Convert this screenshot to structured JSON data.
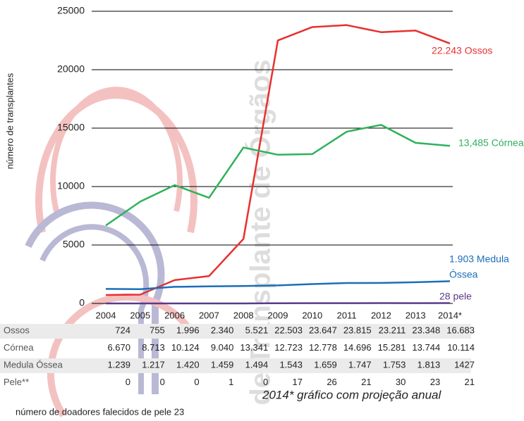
{
  "chart_data": {
    "type": "line",
    "y_label": "número de transplantes",
    "watermark": "de Transplante de Órgãos",
    "categories": [
      "2004",
      "2005",
      "2006",
      "2007",
      "2008",
      "2009",
      "2010",
      "2011",
      "2012",
      "2013",
      "2014*"
    ],
    "ylim": [
      0,
      25000
    ],
    "yticks": [
      0,
      5000,
      10000,
      15000,
      20000,
      25000
    ],
    "grid": true,
    "series": [
      {
        "name": "Ossos",
        "color": "#e8302f",
        "values": [
          724,
          755,
          1996,
          2340,
          5521,
          22503,
          23647,
          23815,
          23211,
          23348,
          22243
        ],
        "end_label": [
          "22.243 Ossos"
        ]
      },
      {
        "name": "Córnea",
        "color": "#2db25a",
        "values": [
          6670,
          8713,
          10124,
          9040,
          13341,
          12723,
          12778,
          14696,
          15281,
          13744,
          13485
        ],
        "end_label": [
          "13,485 Córnea"
        ]
      },
      {
        "name": "Medula Óssea",
        "color": "#1a6fb8",
        "values": [
          1239,
          1217,
          1420,
          1459,
          1494,
          1543,
          1659,
          1747,
          1753,
          1813,
          1903
        ],
        "end_label": [
          "1.903 Medula",
          "Óssea"
        ]
      },
      {
        "name": "Pele**",
        "color": "#5a3a8a",
        "values": [
          0,
          0,
          0,
          1,
          0,
          17,
          26,
          21,
          30,
          23,
          28
        ],
        "end_label": [
          "28 pele"
        ]
      }
    ],
    "table": {
      "rows": [
        [
          "724",
          "755",
          "1.996",
          "2.340",
          "5.521",
          "22.503",
          "23.647",
          "23.815",
          "23.211",
          "23.348",
          "16.683"
        ],
        [
          "6.670",
          "8.713",
          "10.124",
          "9.040",
          "13.341",
          "12.723",
          "12.778",
          "14.696",
          "15.281",
          "13.744",
          "10.114"
        ],
        [
          "1.239",
          "1.217",
          "1.420",
          "1.459",
          "1.494",
          "1.543",
          "1.659",
          "1.747",
          "1.753",
          "1.813",
          "1427"
        ],
        [
          "0",
          "0",
          "0",
          "1",
          "0",
          "17",
          "26",
          "21",
          "30",
          "23",
          "21"
        ]
      ]
    },
    "note": "2014* gráfico com projeção anual",
    "footnote": "número de doadores falecidos de pele 23"
  }
}
